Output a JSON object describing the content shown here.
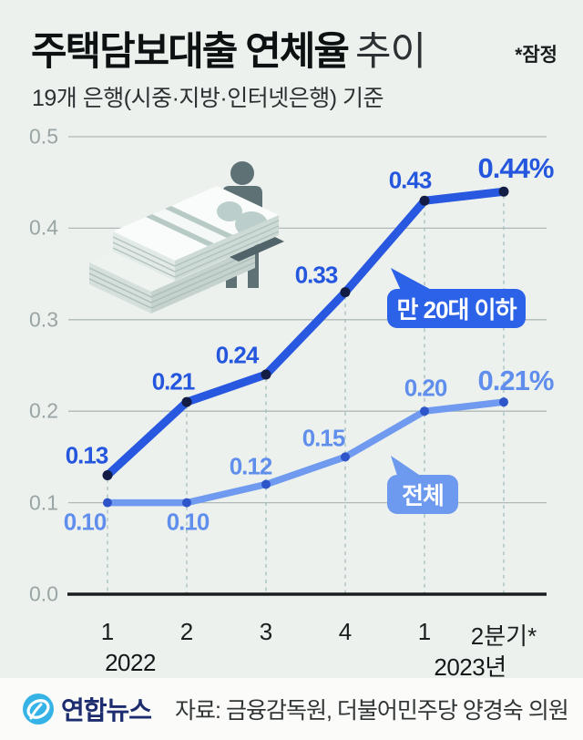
{
  "header": {
    "title_bold": "주택담보대출 연체율",
    "title_light": "추이",
    "note": "*잠정",
    "subtitle": "19개 은행(시중·지방·인터넷은행) 기준"
  },
  "chart_data": {
    "type": "line",
    "title": "주택담보대출 연체율 추이",
    "unit": "%",
    "ylim": [
      0,
      0.5
    ],
    "grid": true,
    "legend_position": "inline-bubbles",
    "y_tick_labels": [
      "0.0",
      "0.1",
      "0.2",
      "0.3",
      "0.4",
      "0.5"
    ],
    "x_tick_labels": [
      "1",
      "2",
      "3",
      "4",
      "1",
      "2분기*"
    ],
    "x_group_labels": [
      "2022",
      "2023년"
    ],
    "series": [
      {
        "name": "만 20대 이하",
        "values": [
          0.13,
          0.21,
          0.24,
          0.33,
          0.43,
          0.44
        ],
        "point_labels": [
          "0.13",
          "0.21",
          "0.24",
          "0.33",
          "0.43",
          "0.44%"
        ],
        "line_color": "#2857e0",
        "dot_color": "#131c44",
        "label_color": "#2456de"
      },
      {
        "name": "전체",
        "values": [
          0.1,
          0.1,
          0.12,
          0.15,
          0.2,
          0.21
        ],
        "point_labels": [
          "0.10",
          "0.10",
          "0.12",
          "0.15",
          "0.20",
          "0.21%"
        ],
        "line_color": "#6f9aef",
        "dot_color": "#2e54c9",
        "label_color": "#5f8eec"
      }
    ],
    "annotations": [
      {
        "text": "만 20대 이하",
        "bubble_color": "#2b62e8",
        "text_color": "#ffffff"
      },
      {
        "text": "전체",
        "bubble_color": "#6d99ee",
        "text_color": "#ffffff"
      }
    ]
  },
  "footer": {
    "logo_text": "연합뉴스",
    "source": "자료: 금융감독원, 더불어민주당 양경숙 의원"
  }
}
